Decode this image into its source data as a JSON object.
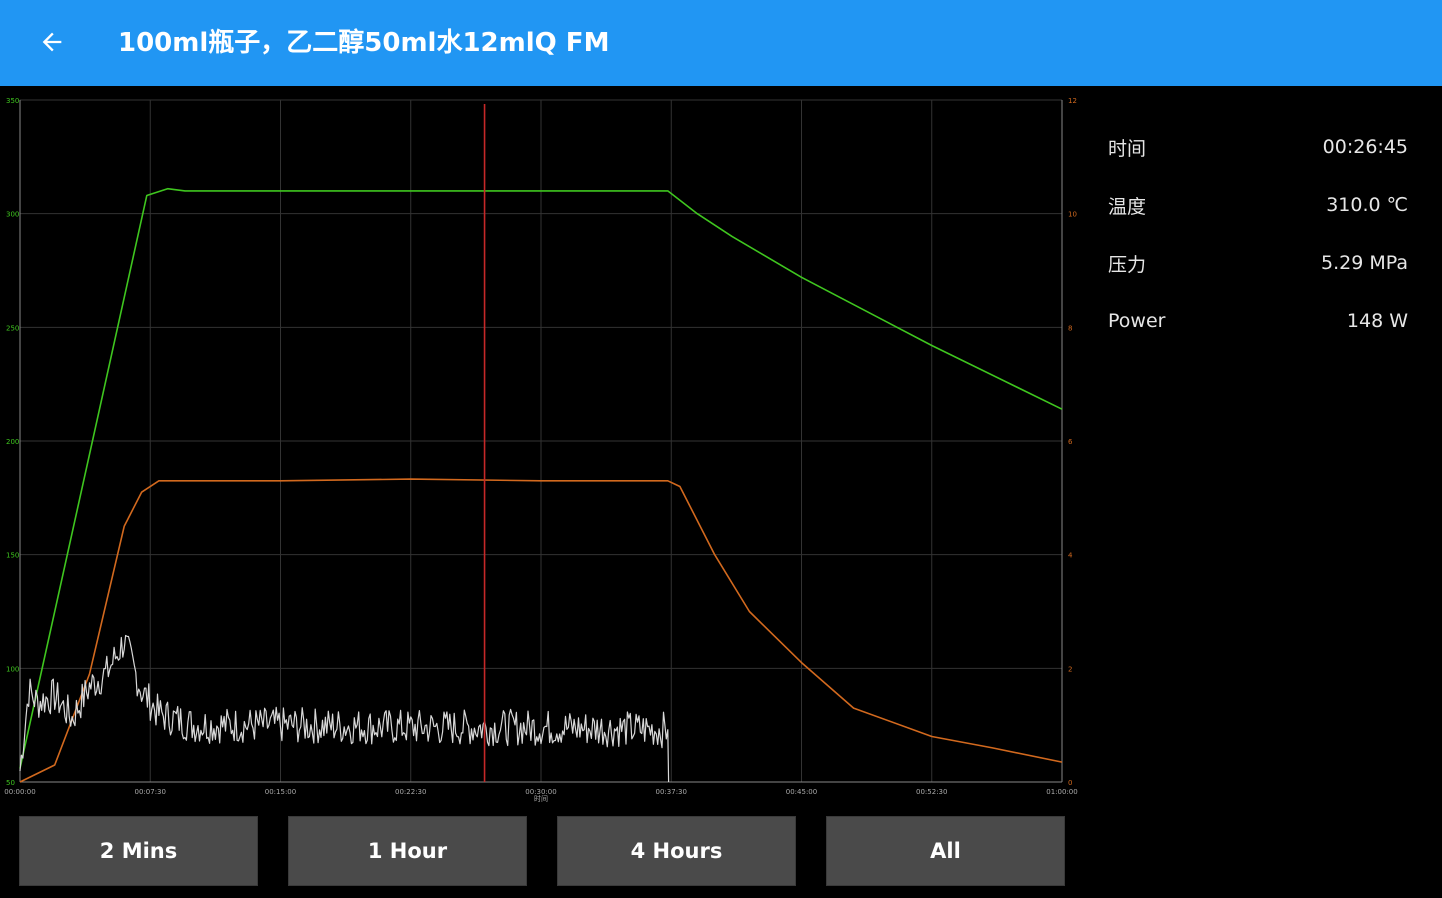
{
  "app_bar": {
    "back_icon": "arrow-left-icon",
    "title": "100ml瓶子，乙二醇50ml水12mlQ FM",
    "color": "#2196F3"
  },
  "info": [
    {
      "label": "时间",
      "value": "00:26:45"
    },
    {
      "label": "温度",
      "value": "310.0 ℃"
    },
    {
      "label": "压力",
      "value": "5.29 MPa"
    },
    {
      "label": "Power",
      "value": "148 W"
    }
  ],
  "range_buttons": [
    {
      "label": "2 Mins"
    },
    {
      "label": "1 Hour"
    },
    {
      "label": "4 Hours"
    },
    {
      "label": "All"
    }
  ],
  "chart_data": {
    "type": "line",
    "xlabel": "时间",
    "x_ticks": [
      "00:00:00",
      "00:07:30",
      "00:15:00",
      "00:22:30",
      "00:30:00",
      "00:37:30",
      "00:45:00",
      "00:52:30",
      "01:00:00"
    ],
    "xlim_minutes": [
      0,
      60
    ],
    "y_left_ticks": [
      "350",
      "300",
      "250",
      "200",
      "150",
      "100",
      "50"
    ],
    "y_left_lim": [
      50,
      350
    ],
    "y_right_ticks": [
      "12",
      "10",
      "8",
      "6",
      "4",
      "2",
      "0"
    ],
    "y_right_lim": [
      0,
      12
    ],
    "cursor_minutes": 26.75,
    "grid": true,
    "series": [
      {
        "color": "#3fc61f",
        "axis": "left",
        "points": [
          [
            0,
            56
          ],
          [
            7.3,
            308
          ],
          [
            8.5,
            311
          ],
          [
            9.5,
            310
          ],
          [
            15,
            310
          ],
          [
            22.5,
            310
          ],
          [
            30,
            310
          ],
          [
            37.3,
            310
          ],
          [
            39,
            300
          ],
          [
            41,
            290
          ],
          [
            45,
            272
          ],
          [
            52.5,
            242
          ],
          [
            60,
            214
          ]
        ]
      },
      {
        "color": "#d2691e",
        "axis": "right",
        "points": [
          [
            0,
            0
          ],
          [
            2,
            0.3
          ],
          [
            4,
            1.9
          ],
          [
            6,
            4.5
          ],
          [
            7,
            5.1
          ],
          [
            8,
            5.3
          ],
          [
            15,
            5.3
          ],
          [
            22.5,
            5.33
          ],
          [
            30,
            5.3
          ],
          [
            37.3,
            5.3
          ],
          [
            38,
            5.2
          ],
          [
            40,
            4.0
          ],
          [
            42,
            3.0
          ],
          [
            45,
            2.1
          ],
          [
            48,
            1.3
          ],
          [
            52.5,
            0.8
          ],
          [
            56,
            0.6
          ],
          [
            60,
            0.35
          ]
        ]
      },
      {
        "color": "#d8d8d8",
        "axis": "left",
        "note_hidden": false,
        "points": [
          [
            0,
            55
          ],
          [
            0.5,
            90
          ],
          [
            1,
            85
          ],
          [
            2,
            88
          ],
          [
            3,
            78
          ],
          [
            4,
            92
          ],
          [
            5,
            98
          ],
          [
            6,
            112
          ],
          [
            7,
            90
          ],
          [
            8,
            80
          ],
          [
            10,
            75
          ],
          [
            15,
            75
          ],
          [
            22.5,
            74
          ],
          [
            30,
            74
          ],
          [
            37.3,
            73
          ],
          [
            37.35,
            50
          ]
        ]
      }
    ]
  }
}
